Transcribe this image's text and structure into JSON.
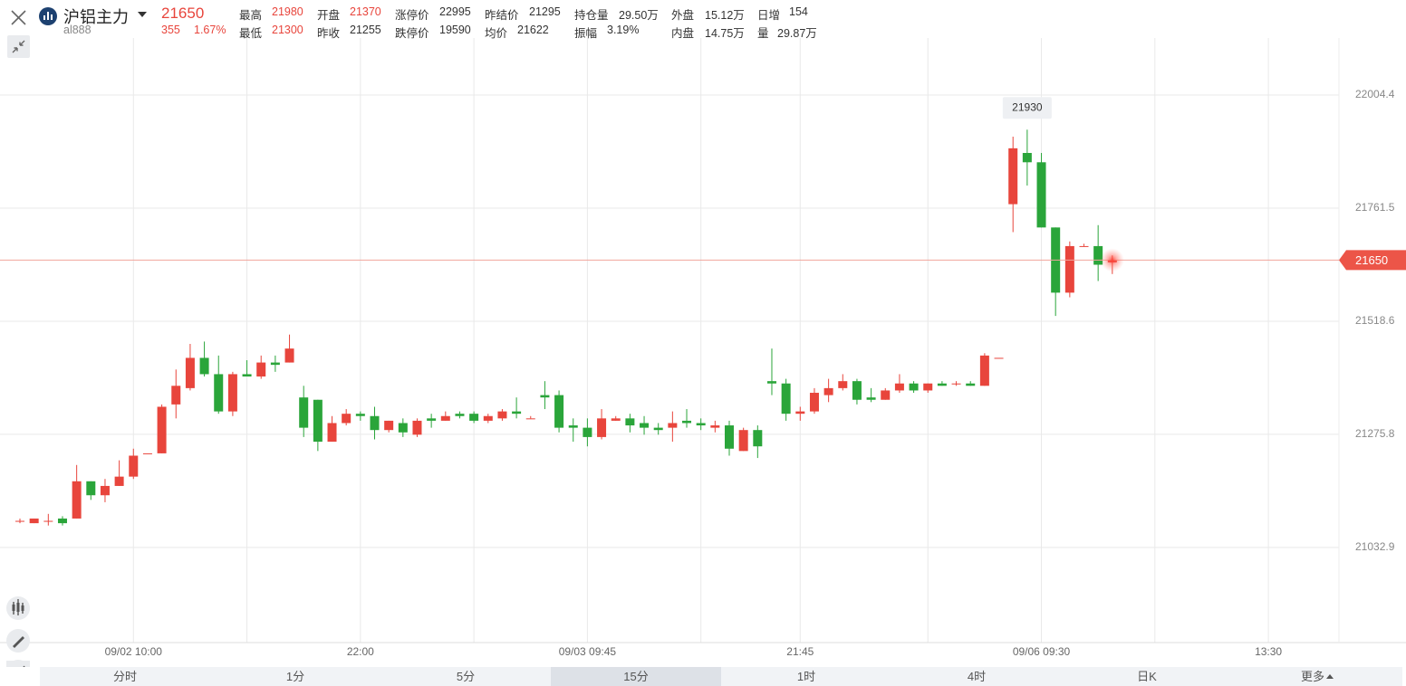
{
  "header": {
    "name": "沪铝主力",
    "code": "al888",
    "price": "21650",
    "change": "355",
    "change_pct": "1.67%",
    "stats": [
      [
        {
          "label": "最高",
          "value": "21980"
        },
        {
          "label": "开盘",
          "value": "21370"
        },
        {
          "label": "涨停价",
          "value": "22995"
        },
        {
          "label": "昨结价",
          "value": "21295"
        },
        {
          "label": "持仓量",
          "value": "29.50万"
        },
        {
          "label": "外盘",
          "value": "15.12万"
        },
        {
          "label": "日增",
          "value": "154"
        }
      ],
      [
        {
          "label": "最低",
          "value": "21300"
        },
        {
          "label": "昨收",
          "value": "21255"
        },
        {
          "label": "跌停价",
          "value": "19590"
        },
        {
          "label": "均价",
          "value": "21622"
        },
        {
          "label": "振幅",
          "value": "3.19%"
        },
        {
          "label": "内盘",
          "value": "14.75万"
        },
        {
          "label": "量",
          "value": "29.87万"
        }
      ]
    ]
  },
  "tabs": [
    "分时",
    "1分",
    "5分",
    "15分",
    "1时",
    "4时",
    "日K",
    "更多"
  ],
  "chart_data": {
    "type": "candlestick",
    "up_color": "#e8453c",
    "down_color": "#2aa53a",
    "grid": true,
    "categories": [
      null,
      null,
      null,
      null,
      null,
      null,
      null,
      null,
      "09/02 10:00",
      null,
      null,
      null,
      null,
      null,
      null,
      null,
      null,
      null,
      null,
      null,
      null,
      null,
      null,
      null,
      "22:00",
      null,
      null,
      null,
      null,
      null,
      null,
      null,
      null,
      null,
      null,
      null,
      null,
      null,
      null,
      null,
      "09/03 09:45",
      null,
      null,
      null,
      null,
      null,
      null,
      null,
      null,
      null,
      null,
      null,
      null,
      null,
      null,
      "21:45",
      null,
      null,
      null,
      null,
      null,
      null,
      null,
      null,
      null,
      null,
      null,
      null,
      null,
      null,
      null,
      null,
      "09/06 09:30",
      null,
      null,
      null,
      null,
      null,
      null,
      null,
      null,
      null,
      null,
      null,
      null,
      null,
      null,
      null,
      "13:30"
    ],
    "open": [
      21090,
      21085,
      21090,
      21095,
      21095,
      21175,
      21145,
      21165,
      21185,
      21235,
      21235,
      21340,
      21375,
      21440,
      21405,
      21325,
      21405,
      21400,
      21430,
      21430,
      21355,
      21350,
      21260,
      21300,
      21320,
      21315,
      21285,
      21300,
      21275,
      21310,
      21305,
      21320,
      21320,
      21305,
      21310,
      21325,
      21310,
      21360,
      21360,
      21295,
      21290,
      21270,
      21305,
      21310,
      21300,
      21290,
      21290,
      21305,
      21300,
      21290,
      21295,
      21240,
      21285,
      21390,
      21385,
      21320,
      21325,
      21360,
      21375,
      21390,
      21355,
      21350,
      21370,
      21385,
      21370,
      21385,
      21385,
      21385,
      21380,
      21440,
      21770,
      21880,
      21860,
      21720,
      21580,
      21680,
      21680,
      21645,
      null,
      null,
      null,
      null,
      null,
      null,
      null,
      null,
      null,
      null,
      null
    ],
    "high": [
      21095,
      21095,
      21105,
      21100,
      21210,
      21175,
      21180,
      21220,
      21245,
      21235,
      21340,
      21415,
      21470,
      21475,
      21445,
      21410,
      21435,
      21445,
      21445,
      21490,
      21380,
      21350,
      21315,
      21330,
      21325,
      21335,
      21305,
      21310,
      21310,
      21320,
      21325,
      21325,
      21325,
      21320,
      21330,
      21355,
      21315,
      21390,
      21370,
      21310,
      21310,
      21330,
      21315,
      21320,
      21315,
      21300,
      21325,
      21330,
      21310,
      21305,
      21305,
      21290,
      21295,
      21460,
      21395,
      21335,
      21375,
      21395,
      21405,
      21395,
      21375,
      21375,
      21405,
      21390,
      21385,
      21390,
      21390,
      21390,
      21450,
      21440,
      21915,
      21930,
      21880,
      21720,
      21690,
      21685,
      21725,
      21660,
      null,
      null,
      null,
      null,
      null,
      null,
      null,
      null,
      null,
      null,
      null
    ],
    "low": [
      21085,
      21085,
      21080,
      21080,
      21095,
      21135,
      21130,
      21165,
      21180,
      21235,
      21235,
      21310,
      21370,
      21400,
      21320,
      21315,
      21400,
      21395,
      21410,
      21430,
      21270,
      21240,
      21260,
      21295,
      21305,
      21265,
      21280,
      21270,
      21270,
      21290,
      21305,
      21310,
      21300,
      21300,
      21305,
      21310,
      21310,
      21330,
      21280,
      21260,
      21250,
      21265,
      21305,
      21280,
      21275,
      21275,
      21260,
      21290,
      21285,
      21280,
      21230,
      21240,
      21225,
      21360,
      21305,
      21305,
      21320,
      21345,
      21370,
      21340,
      21345,
      21350,
      21365,
      21365,
      21365,
      21380,
      21380,
      21380,
      21380,
      21440,
      21710,
      21810,
      21720,
      21530,
      21570,
      21680,
      21605,
      21620,
      null,
      null,
      null,
      null,
      null,
      null,
      null,
      null,
      null,
      null,
      null
    ],
    "close": [
      21090,
      21095,
      21090,
      21085,
      21175,
      21145,
      21165,
      21185,
      21230,
      21235,
      21335,
      21380,
      21440,
      21405,
      21325,
      21405,
      21400,
      21430,
      21425,
      21460,
      21290,
      21260,
      21300,
      21320,
      21315,
      21285,
      21305,
      21280,
      21305,
      21305,
      21315,
      21315,
      21305,
      21315,
      21325,
      21320,
      21310,
      21355,
      21290,
      21290,
      21270,
      21310,
      21310,
      21295,
      21290,
      21285,
      21300,
      21300,
      21295,
      21295,
      21245,
      21285,
      21250,
      21385,
      21320,
      21325,
      21365,
      21375,
      21390,
      21350,
      21350,
      21370,
      21385,
      21370,
      21385,
      21380,
      21385,
      21380,
      21445,
      21440,
      21890,
      21860,
      21720,
      21580,
      21680,
      21680,
      21640,
      21650,
      null,
      null,
      null,
      null,
      null,
      null,
      null,
      null,
      null,
      null,
      null
    ],
    "ylim": [
      20828.7,
      22126.8
    ],
    "yticks": [
      22004.4,
      21761.5,
      21518.6,
      21275.8,
      21032.9
    ]
  }
}
